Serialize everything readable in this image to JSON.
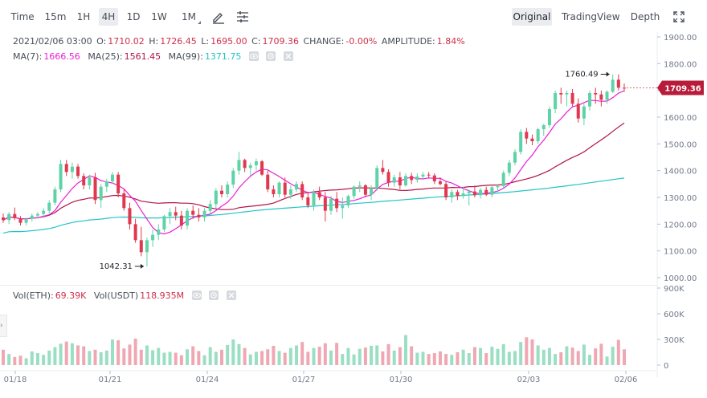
{
  "toolbar": {
    "intervals": [
      {
        "label": "Time",
        "active": false
      },
      {
        "label": "15m",
        "active": false
      },
      {
        "label": "1H",
        "active": false
      },
      {
        "label": "4H",
        "active": true
      },
      {
        "label": "1D",
        "active": false
      },
      {
        "label": "1W",
        "active": false
      },
      {
        "label": "1M",
        "active": false
      }
    ],
    "views": [
      {
        "label": "Original",
        "active": true
      },
      {
        "label": "TradingView",
        "active": false
      },
      {
        "label": "Depth",
        "active": false
      }
    ],
    "icons": [
      "draw-pen-icon",
      "indicator-settings-icon",
      "fullscreen-icon"
    ]
  },
  "ohlc": {
    "date": "2021/02/06 03:00",
    "open_label": "O:",
    "open": "1710.02",
    "high_label": "H:",
    "high": "1726.45",
    "low_label": "L:",
    "low": "1695.00",
    "close_label": "C:",
    "close": "1709.36",
    "change_label": "CHANGE:",
    "change": "-0.00%",
    "amplitude_label": "AMPLITUDE:",
    "amplitude": "1.84%"
  },
  "ma": {
    "ma7_label": "MA(7):",
    "ma7": "1666.56",
    "ma25_label": "MA(25):",
    "ma25": "1561.45",
    "ma99_label": "MA(99):",
    "ma99": "1371.75"
  },
  "volume": {
    "eth_label": "Vol(ETH):",
    "eth": "69.39K",
    "usdt_label": "Vol(USDT)",
    "usdt": "118.935M"
  },
  "colors": {
    "up": "#5fd3a8",
    "down": "#e0384f",
    "up_vol": "#9adfc3",
    "down_vol": "#efa8b3",
    "ma7": "#e91fd6",
    "ma25": "#b31345",
    "ma99": "#22c3c9",
    "price_tag": "#b71c3a"
  },
  "chart_data": {
    "type": "candlestick",
    "price_axis": {
      "min": 1000,
      "max": 1900,
      "ticks": [
        1000,
        1100,
        1200,
        1300,
        1400,
        1500,
        1600,
        1700,
        1800,
        1900
      ]
    },
    "volume_axis": {
      "ticks": [
        "0",
        "300K",
        "600K",
        "900K"
      ]
    },
    "date_ticks": [
      "01/18",
      "01/21",
      "01/24",
      "01/27",
      "01/30",
      "02/03",
      "02/06"
    ],
    "last_price": "1709.36",
    "annotations": [
      {
        "label": "1760.49",
        "value": 1760.49
      },
      {
        "label": "1042.31",
        "value": 1042.31
      }
    ],
    "candles": [
      [
        1225,
        1240,
        1205,
        1215
      ],
      [
        1215,
        1245,
        1200,
        1238
      ],
      [
        1238,
        1262,
        1215,
        1222
      ],
      [
        1222,
        1230,
        1195,
        1205
      ],
      [
        1205,
        1225,
        1195,
        1220
      ],
      [
        1220,
        1240,
        1210,
        1232
      ],
      [
        1232,
        1245,
        1220,
        1238
      ],
      [
        1238,
        1260,
        1228,
        1250
      ],
      [
        1250,
        1290,
        1240,
        1280
      ],
      [
        1280,
        1340,
        1270,
        1330
      ],
      [
        1330,
        1440,
        1320,
        1425
      ],
      [
        1425,
        1440,
        1380,
        1395
      ],
      [
        1395,
        1430,
        1370,
        1415
      ],
      [
        1415,
        1425,
        1370,
        1380
      ],
      [
        1380,
        1390,
        1330,
        1345
      ],
      [
        1345,
        1385,
        1330,
        1375
      ],
      [
        1375,
        1392,
        1275,
        1290
      ],
      [
        1290,
        1350,
        1260,
        1340
      ],
      [
        1340,
        1370,
        1320,
        1360
      ],
      [
        1360,
        1395,
        1350,
        1385
      ],
      [
        1385,
        1395,
        1300,
        1315
      ],
      [
        1315,
        1330,
        1250,
        1260
      ],
      [
        1260,
        1280,
        1180,
        1200
      ],
      [
        1200,
        1220,
        1130,
        1140
      ],
      [
        1140,
        1190,
        1080,
        1095
      ],
      [
        1095,
        1150,
        1042,
        1140
      ],
      [
        1140,
        1180,
        1115,
        1160
      ],
      [
        1160,
        1200,
        1140,
        1180
      ],
      [
        1180,
        1235,
        1170,
        1230
      ],
      [
        1230,
        1260,
        1200,
        1245
      ],
      [
        1245,
        1265,
        1215,
        1232
      ],
      [
        1232,
        1250,
        1180,
        1195
      ],
      [
        1195,
        1260,
        1180,
        1250
      ],
      [
        1250,
        1270,
        1220,
        1235
      ],
      [
        1235,
        1260,
        1210,
        1225
      ],
      [
        1225,
        1260,
        1210,
        1250
      ],
      [
        1250,
        1290,
        1240,
        1275
      ],
      [
        1275,
        1335,
        1260,
        1325
      ],
      [
        1325,
        1345,
        1300,
        1312
      ],
      [
        1312,
        1360,
        1300,
        1348
      ],
      [
        1348,
        1410,
        1335,
        1400
      ],
      [
        1400,
        1470,
        1385,
        1440
      ],
      [
        1440,
        1445,
        1395,
        1410
      ],
      [
        1410,
        1430,
        1380,
        1420
      ],
      [
        1420,
        1445,
        1400,
        1435
      ],
      [
        1435,
        1440,
        1380,
        1385
      ],
      [
        1385,
        1400,
        1320,
        1330
      ],
      [
        1330,
        1345,
        1300,
        1312
      ],
      [
        1312,
        1360,
        1300,
        1355
      ],
      [
        1355,
        1375,
        1300,
        1310
      ],
      [
        1310,
        1345,
        1295,
        1330
      ],
      [
        1330,
        1360,
        1320,
        1350
      ],
      [
        1350,
        1360,
        1290,
        1300
      ],
      [
        1300,
        1320,
        1260,
        1270
      ],
      [
        1270,
        1330,
        1250,
        1320
      ],
      [
        1320,
        1340,
        1290,
        1300
      ],
      [
        1300,
        1320,
        1210,
        1250
      ],
      [
        1250,
        1305,
        1235,
        1295
      ],
      [
        1295,
        1320,
        1245,
        1260
      ],
      [
        1260,
        1300,
        1220,
        1270
      ],
      [
        1270,
        1310,
        1260,
        1305
      ],
      [
        1305,
        1345,
        1295,
        1340
      ],
      [
        1340,
        1360,
        1320,
        1345
      ],
      [
        1345,
        1350,
        1300,
        1310
      ],
      [
        1310,
        1345,
        1290,
        1335
      ],
      [
        1335,
        1420,
        1325,
        1410
      ],
      [
        1410,
        1440,
        1385,
        1395
      ],
      [
        1395,
        1405,
        1340,
        1355
      ],
      [
        1355,
        1385,
        1340,
        1375
      ],
      [
        1375,
        1395,
        1330,
        1345
      ],
      [
        1345,
        1390,
        1340,
        1380
      ],
      [
        1380,
        1392,
        1350,
        1365
      ],
      [
        1365,
        1390,
        1355,
        1378
      ],
      [
        1378,
        1395,
        1365,
        1385
      ],
      [
        1385,
        1395,
        1370,
        1382
      ],
      [
        1382,
        1390,
        1350,
        1360
      ],
      [
        1360,
        1375,
        1345,
        1350
      ],
      [
        1350,
        1360,
        1290,
        1300
      ],
      [
        1300,
        1330,
        1280,
        1320
      ],
      [
        1320,
        1328,
        1290,
        1305
      ],
      [
        1305,
        1340,
        1295,
        1315
      ],
      [
        1315,
        1330,
        1270,
        1322
      ],
      [
        1322,
        1345,
        1300,
        1308
      ],
      [
        1308,
        1335,
        1295,
        1328
      ],
      [
        1328,
        1340,
        1305,
        1310
      ],
      [
        1310,
        1342,
        1300,
        1338
      ],
      [
        1338,
        1350,
        1320,
        1342
      ],
      [
        1342,
        1400,
        1335,
        1392
      ],
      [
        1392,
        1440,
        1380,
        1430
      ],
      [
        1430,
        1480,
        1420,
        1470
      ],
      [
        1470,
        1555,
        1460,
        1545
      ],
      [
        1545,
        1560,
        1500,
        1520
      ],
      [
        1520,
        1535,
        1495,
        1510
      ],
      [
        1510,
        1560,
        1500,
        1555
      ],
      [
        1555,
        1575,
        1530,
        1570
      ],
      [
        1570,
        1640,
        1560,
        1630
      ],
      [
        1630,
        1700,
        1615,
        1690
      ],
      [
        1690,
        1710,
        1650,
        1685
      ],
      [
        1685,
        1700,
        1640,
        1690
      ],
      [
        1690,
        1705,
        1640,
        1650
      ],
      [
        1650,
        1670,
        1580,
        1595
      ],
      [
        1595,
        1650,
        1570,
        1640
      ],
      [
        1640,
        1700,
        1625,
        1690
      ],
      [
        1690,
        1710,
        1650,
        1685
      ],
      [
        1685,
        1700,
        1640,
        1665
      ],
      [
        1665,
        1700,
        1650,
        1695
      ],
      [
        1695,
        1760,
        1690,
        1740
      ],
      [
        1740,
        1760,
        1700,
        1710
      ],
      [
        1710,
        1726,
        1695,
        1709
      ]
    ],
    "volume_k": [
      180,
      130,
      95,
      110,
      80,
      160,
      140,
      120,
      170,
      210,
      250,
      275,
      255,
      230,
      220,
      165,
      180,
      150,
      170,
      300,
      290,
      195,
      240,
      310,
      180,
      230,
      175,
      200,
      145,
      155,
      145,
      115,
      185,
      220,
      165,
      115,
      210,
      155,
      180,
      235,
      300,
      245,
      200,
      125,
      155,
      165,
      185,
      225,
      165,
      145,
      200,
      230,
      270,
      155,
      200,
      215,
      255,
      170,
      260,
      130,
      200,
      125,
      190,
      205,
      225,
      230,
      160,
      245,
      170,
      210,
      350,
      220,
      145,
      155,
      130,
      140,
      160,
      130,
      120,
      150,
      180,
      140,
      210,
      200,
      140,
      215,
      190,
      245,
      155,
      165,
      270,
      325,
      300,
      230,
      180,
      200,
      130,
      150,
      220,
      205,
      165,
      240,
      120,
      195,
      250,
      100,
      215,
      295,
      185,
      35
    ]
  }
}
